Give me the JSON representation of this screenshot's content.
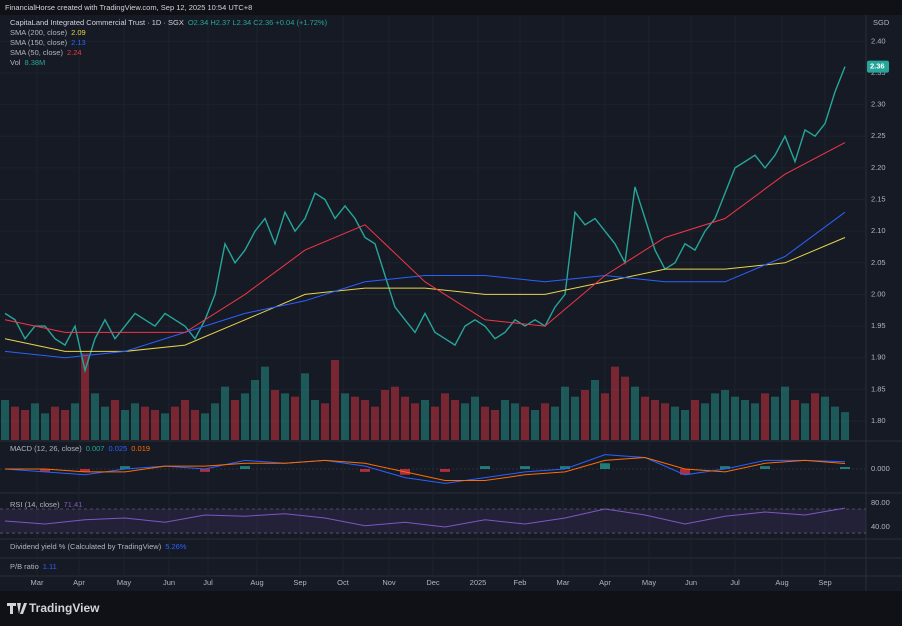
{
  "header": "FinancialHorse created with TradingView.com, Sep 12, 2025 10:54 UTC+8",
  "footer_brand": "TradingView",
  "chart_data": [
    {
      "type": "price",
      "title": "CapitaLand Integrated Commercial Trust · 1D · SGX",
      "quote": "O2.34 H2.37 L2.34 C2.36 +0.04 (+1.72%)",
      "currency": "SGD",
      "xlim": [
        -0.5,
        86.1
      ],
      "ylim": [
        1.77,
        2.44
      ],
      "yticks": [
        {
          "value": 1.8,
          "label": "1.80"
        },
        {
          "value": 1.85,
          "label": "1.85"
        },
        {
          "value": 1.9,
          "label": "1.90"
        },
        {
          "value": 1.95,
          "label": "1.95"
        },
        {
          "value": 2.0,
          "label": "2.00"
        },
        {
          "value": 2.05,
          "label": "2.05"
        },
        {
          "value": 2.1,
          "label": "2.10"
        },
        {
          "value": 2.15,
          "label": "2.15"
        },
        {
          "value": 2.2,
          "label": "2.20"
        },
        {
          "value": 2.25,
          "label": "2.25"
        },
        {
          "value": 2.3,
          "label": "2.30"
        },
        {
          "value": 2.35,
          "label": "2.35"
        },
        {
          "value": 2.4,
          "label": "2.40"
        }
      ],
      "xticks": [
        {
          "value": 3.2,
          "label": "Mar"
        },
        {
          "value": 7.4,
          "label": "Apr"
        },
        {
          "value": 11.9,
          "label": "May"
        },
        {
          "value": 16.4,
          "label": "Jun"
        },
        {
          "value": 20.3,
          "label": "Jul"
        },
        {
          "value": 25.2,
          "label": "Aug"
        },
        {
          "value": 29.5,
          "label": "Sep"
        },
        {
          "value": 33.8,
          "label": "Oct"
        },
        {
          "value": 38.4,
          "label": "Nov"
        },
        {
          "value": 42.8,
          "label": "Dec"
        },
        {
          "value": 47.3,
          "label": "2025"
        },
        {
          "value": 51.5,
          "label": "Feb"
        },
        {
          "value": 55.8,
          "label": "Mar"
        },
        {
          "value": 60,
          "label": "Apr"
        },
        {
          "value": 64.4,
          "label": "May"
        },
        {
          "value": 68.6,
          "label": "Jun"
        },
        {
          "value": 73,
          "label": "Jul"
        },
        {
          "value": 77.7,
          "label": "Aug"
        },
        {
          "value": 82,
          "label": "Sep"
        }
      ],
      "grid": true,
      "volume_ylim": [
        0,
        30
      ],
      "series": [
        {
          "type": "line",
          "color": "#26a69a",
          "x": [
            0,
            1,
            2,
            3,
            4,
            5,
            6,
            7,
            8,
            9,
            10,
            11,
            12,
            13,
            14,
            15,
            16,
            17,
            18,
            19,
            20,
            21,
            22,
            23,
            24,
            25,
            26,
            27,
            28,
            29,
            30,
            31,
            32,
            33,
            34,
            35,
            36,
            37,
            38,
            39,
            40,
            41,
            42,
            43,
            44,
            45,
            46,
            47,
            48,
            49,
            50,
            51,
            52,
            53,
            54,
            55,
            56,
            57,
            58,
            59,
            60,
            61,
            62,
            63,
            64,
            65,
            66,
            67,
            68,
            69,
            70,
            71,
            72,
            73,
            74,
            75,
            76,
            77,
            78,
            79,
            80,
            81,
            82,
            83,
            84
          ],
          "values": [
            1.97,
            1.96,
            1.93,
            1.95,
            1.95,
            1.93,
            1.92,
            1.95,
            1.88,
            1.93,
            1.96,
            1.93,
            1.95,
            1.97,
            1.96,
            1.95,
            1.97,
            1.96,
            1.95,
            1.93,
            1.96,
            2.0,
            2.08,
            2.05,
            2.07,
            2.1,
            2.12,
            2.08,
            2.13,
            2.1,
            2.12,
            2.16,
            2.15,
            2.12,
            2.14,
            2.12,
            2.09,
            2.08,
            2.03,
            1.98,
            1.96,
            1.94,
            1.97,
            1.94,
            1.93,
            1.92,
            1.95,
            1.96,
            1.95,
            1.93,
            1.94,
            1.96,
            1.95,
            1.96,
            1.95,
            1.98,
            2.0,
            2.13,
            2.11,
            2.12,
            2.1,
            2.08,
            2.05,
            2.17,
            2.12,
            2.07,
            2.04,
            2.05,
            2.08,
            2.07,
            2.1,
            2.12,
            2.16,
            2.2,
            2.21,
            2.22,
            2.2,
            2.22,
            2.25,
            2.21,
            2.26,
            2.25,
            2.27,
            2.32,
            2.36
          ]
        },
        {
          "type": "line",
          "name": "SMA (200, close)",
          "color": "#e8d44d",
          "x": [
            0,
            6,
            12,
            18,
            24,
            30,
            36,
            42,
            48,
            54,
            60,
            66,
            72,
            78,
            84
          ],
          "values": [
            1.93,
            1.91,
            1.91,
            1.92,
            1.96,
            2.0,
            2.01,
            2.01,
            2.0,
            2.0,
            2.02,
            2.04,
            2.04,
            2.05,
            2.09
          ]
        },
        {
          "type": "line",
          "name": "SMA (150, close)",
          "color": "#2962ff",
          "x": [
            0,
            6,
            12,
            18,
            24,
            30,
            36,
            42,
            48,
            54,
            60,
            66,
            72,
            78,
            84
          ],
          "values": [
            1.91,
            1.9,
            1.91,
            1.94,
            1.97,
            1.99,
            2.02,
            2.03,
            2.03,
            2.02,
            2.03,
            2.02,
            2.02,
            2.06,
            2.13
          ]
        },
        {
          "type": "line",
          "name": "SMA (50, close)",
          "color": "#f23645",
          "x": [
            0,
            6,
            12,
            18,
            24,
            30,
            36,
            42,
            48,
            54,
            60,
            66,
            72,
            78,
            84
          ],
          "values": [
            1.96,
            1.94,
            1.94,
            1.94,
            2.0,
            2.07,
            2.11,
            2.02,
            1.96,
            1.95,
            2.03,
            2.09,
            2.12,
            2.19,
            2.24
          ]
        },
        {
          "type": "bar",
          "name": "Vol",
          "color": "#26a69a",
          "down_color": "#f23645",
          "legend_value": "8.38M",
          "x": [
            0,
            1,
            2,
            3,
            4,
            5,
            6,
            7,
            8,
            9,
            10,
            11,
            12,
            13,
            14,
            15,
            16,
            17,
            18,
            19,
            20,
            21,
            22,
            23,
            24,
            25,
            26,
            27,
            28,
            29,
            30,
            31,
            32,
            33,
            34,
            35,
            36,
            37,
            38,
            39,
            40,
            41,
            42,
            43,
            44,
            45,
            46,
            47,
            48,
            49,
            50,
            51,
            52,
            53,
            54,
            55,
            56,
            57,
            58,
            59,
            60,
            61,
            62,
            63,
            64,
            65,
            66,
            67,
            68,
            69,
            70,
            71,
            72,
            73,
            74,
            75,
            76,
            77,
            78,
            79,
            80,
            81,
            82,
            83,
            84
          ],
          "values": [
            12,
            10,
            9,
            11,
            8,
            10,
            9,
            11,
            26,
            14,
            10,
            12,
            9,
            11,
            10,
            9,
            8,
            10,
            12,
            9,
            8,
            11,
            16,
            12,
            14,
            18,
            22,
            15,
            14,
            13,
            20,
            12,
            11,
            24,
            14,
            13,
            12,
            10,
            15,
            16,
            13,
            11,
            12,
            10,
            14,
            12,
            11,
            13,
            10,
            9,
            12,
            11,
            10,
            9,
            11,
            10,
            16,
            13,
            15,
            18,
            14,
            22,
            19,
            16,
            13,
            12,
            11,
            10,
            9,
            12,
            11,
            14,
            15,
            13,
            12,
            11,
            14,
            13,
            16,
            12,
            11,
            14,
            13,
            10,
            8.38
          ]
        }
      ]
    },
    {
      "type": "macd",
      "title": "MACD (12, 26, close)",
      "ylim": [
        -0.08,
        0.08
      ],
      "yticks": [
        {
          "value": 0,
          "label": "0.000"
        }
      ],
      "x": [
        0,
        4,
        8,
        12,
        16,
        20,
        24,
        28,
        32,
        36,
        40,
        44,
        48,
        52,
        56,
        60,
        64,
        68,
        72,
        76,
        80,
        84
      ],
      "series": [
        {
          "type": "histogram",
          "color": "#26a69a",
          "down_color": "#f23645",
          "values": [
            0,
            -0.01,
            -0.01,
            0.01,
            0,
            -0.01,
            0.01,
            0,
            0,
            -0.01,
            -0.02,
            -0.01,
            0.01,
            0.01,
            0.01,
            0.02,
            0,
            -0.02,
            0.01,
            0.01,
            0,
            0.007
          ]
        },
        {
          "type": "line",
          "color": "#2962ff",
          "values": [
            0,
            -0.01,
            -0.02,
            0,
            0.01,
            0,
            0.03,
            0.02,
            0.03,
            0.01,
            -0.03,
            -0.05,
            -0.03,
            -0.01,
            0,
            0.05,
            0.04,
            -0.02,
            0,
            0.03,
            0.03,
            0.025
          ]
        },
        {
          "type": "line",
          "color": "#ff6d00",
          "values": [
            0,
            0,
            -0.01,
            -0.01,
            0.01,
            0.01,
            0.02,
            0.02,
            0.03,
            0.02,
            -0.01,
            -0.04,
            -0.04,
            -0.02,
            -0.01,
            0.03,
            0.04,
            0,
            -0.01,
            0.02,
            0.03,
            0.019
          ]
        }
      ]
    },
    {
      "type": "rsi",
      "title": "RSI (14, close)",
      "color": "#7e57c2",
      "ylim": [
        21.7,
        93.3
      ],
      "band": [
        30,
        70
      ],
      "yticks": [
        {
          "value": 80,
          "label": "80.00"
        },
        {
          "value": 40,
          "label": "40.00"
        }
      ],
      "x": [
        0,
        4,
        8,
        12,
        16,
        20,
        24,
        28,
        32,
        36,
        40,
        44,
        48,
        52,
        56,
        60,
        64,
        68,
        72,
        76,
        80,
        84
      ],
      "values": [
        50,
        45,
        52,
        55,
        48,
        60,
        58,
        62,
        55,
        42,
        48,
        40,
        52,
        45,
        55,
        70,
        60,
        45,
        58,
        65,
        60,
        71.41
      ]
    },
    {
      "type": "indicator",
      "title": "Dividend yield % (Calculated by TradingView)",
      "value_label": "5.26%",
      "color": "#2962ff"
    },
    {
      "type": "indicator",
      "title": "P/B ratio",
      "value_label": "1.11",
      "color": "#2962ff"
    }
  ]
}
